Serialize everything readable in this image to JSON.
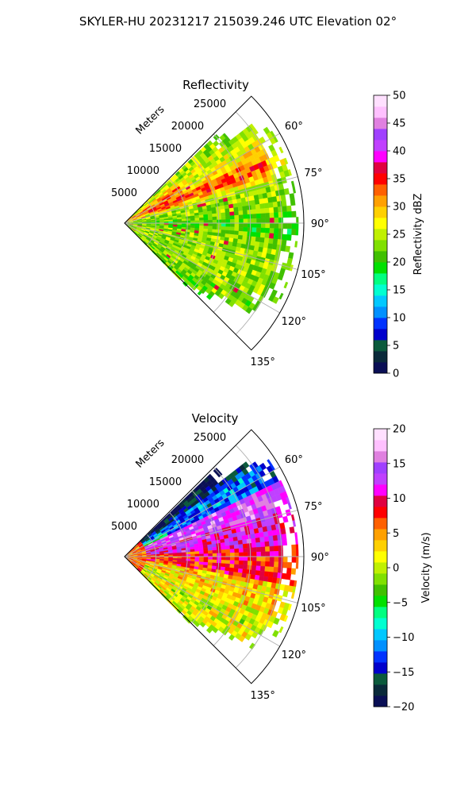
{
  "figure": {
    "suptitle": "SKYLER-HU  20231217  215039.246 UTC Elevation 02°"
  },
  "chart_data": [
    {
      "type": "ppi",
      "title": "Reflectivity",
      "range_label": "Meters",
      "range_ticks": [
        5000,
        10000,
        15000,
        20000,
        25000
      ],
      "range_max": 28500,
      "azimuth_ticks": [
        "60°",
        "75°",
        "90°",
        "105°",
        "120°",
        "135°"
      ],
      "azimuth_range": [
        45,
        135
      ],
      "colorbar": {
        "label": "Reflectivity dBZ",
        "min": 0,
        "max": 50,
        "ticks": [
          "0",
          "5",
          "10",
          "15",
          "20",
          "25",
          "30",
          "35",
          "40",
          "45",
          "50"
        ],
        "colors": [
          "#0a0f55",
          "#0a2a3a",
          "#0b5a3c",
          "#0000cc",
          "#0033ff",
          "#0090ff",
          "#00c8ff",
          "#00ffd0",
          "#00ff80",
          "#00e000",
          "#40c000",
          "#80e000",
          "#c0f000",
          "#ffff00",
          "#ffd000",
          "#ffa000",
          "#ff6000",
          "#ff0000",
          "#e00040",
          "#ff00ff",
          "#c040ff",
          "#a040ff",
          "#e080e0",
          "#ffc0ff",
          "#ffe0ff"
        ]
      },
      "field_summary": [
        {
          "azimuth": 55,
          "range": [
            0,
            28500
          ],
          "value": 34
        },
        {
          "azimuth": 70,
          "range": [
            0,
            28500
          ],
          "value": 30
        },
        {
          "azimuth": 90,
          "range": [
            0,
            28500
          ],
          "value": 22
        },
        {
          "azimuth": 110,
          "range": [
            0,
            28500
          ],
          "value": 24
        },
        {
          "azimuth": 128,
          "range": [
            0,
            24000
          ],
          "value": 22
        }
      ]
    },
    {
      "type": "ppi",
      "title": "Velocity",
      "range_label": "Meters",
      "range_ticks": [
        5000,
        10000,
        15000,
        20000,
        25000
      ],
      "range_max": 28500,
      "azimuth_ticks": [
        "60°",
        "75°",
        "90°",
        "105°",
        "120°",
        "135°"
      ],
      "azimuth_range": [
        45,
        135
      ],
      "colorbar": {
        "label": "Velocity (m/s)",
        "min": -20,
        "max": 20,
        "ticks": [
          "−20",
          "−15",
          "−10",
          "−5",
          "0",
          "5",
          "10",
          "15",
          "20"
        ],
        "colors": [
          "#0a0f55",
          "#0a2a3a",
          "#0b5a3c",
          "#0000cc",
          "#0033ff",
          "#0090ff",
          "#00c8ff",
          "#00ffd0",
          "#00ff80",
          "#00e000",
          "#40c000",
          "#80e000",
          "#c0f000",
          "#ffff00",
          "#ffd000",
          "#ffa000",
          "#ff6000",
          "#ff0000",
          "#e00040",
          "#ff00ff",
          "#c040ff",
          "#a040ff",
          "#e080e0",
          "#ffc0ff",
          "#ffe0ff"
        ]
      },
      "field_summary": [
        {
          "azimuth": 52,
          "range": [
            0,
            28500
          ],
          "value": -12
        },
        {
          "azimuth": 70,
          "range": [
            0,
            28500
          ],
          "value": 14
        },
        {
          "azimuth": 90,
          "range": [
            0,
            28500
          ],
          "value": 10
        },
        {
          "azimuth": 110,
          "range": [
            0,
            28500
          ],
          "value": 3
        },
        {
          "azimuth": 128,
          "range": [
            0,
            24000
          ],
          "value": 1
        }
      ]
    }
  ]
}
